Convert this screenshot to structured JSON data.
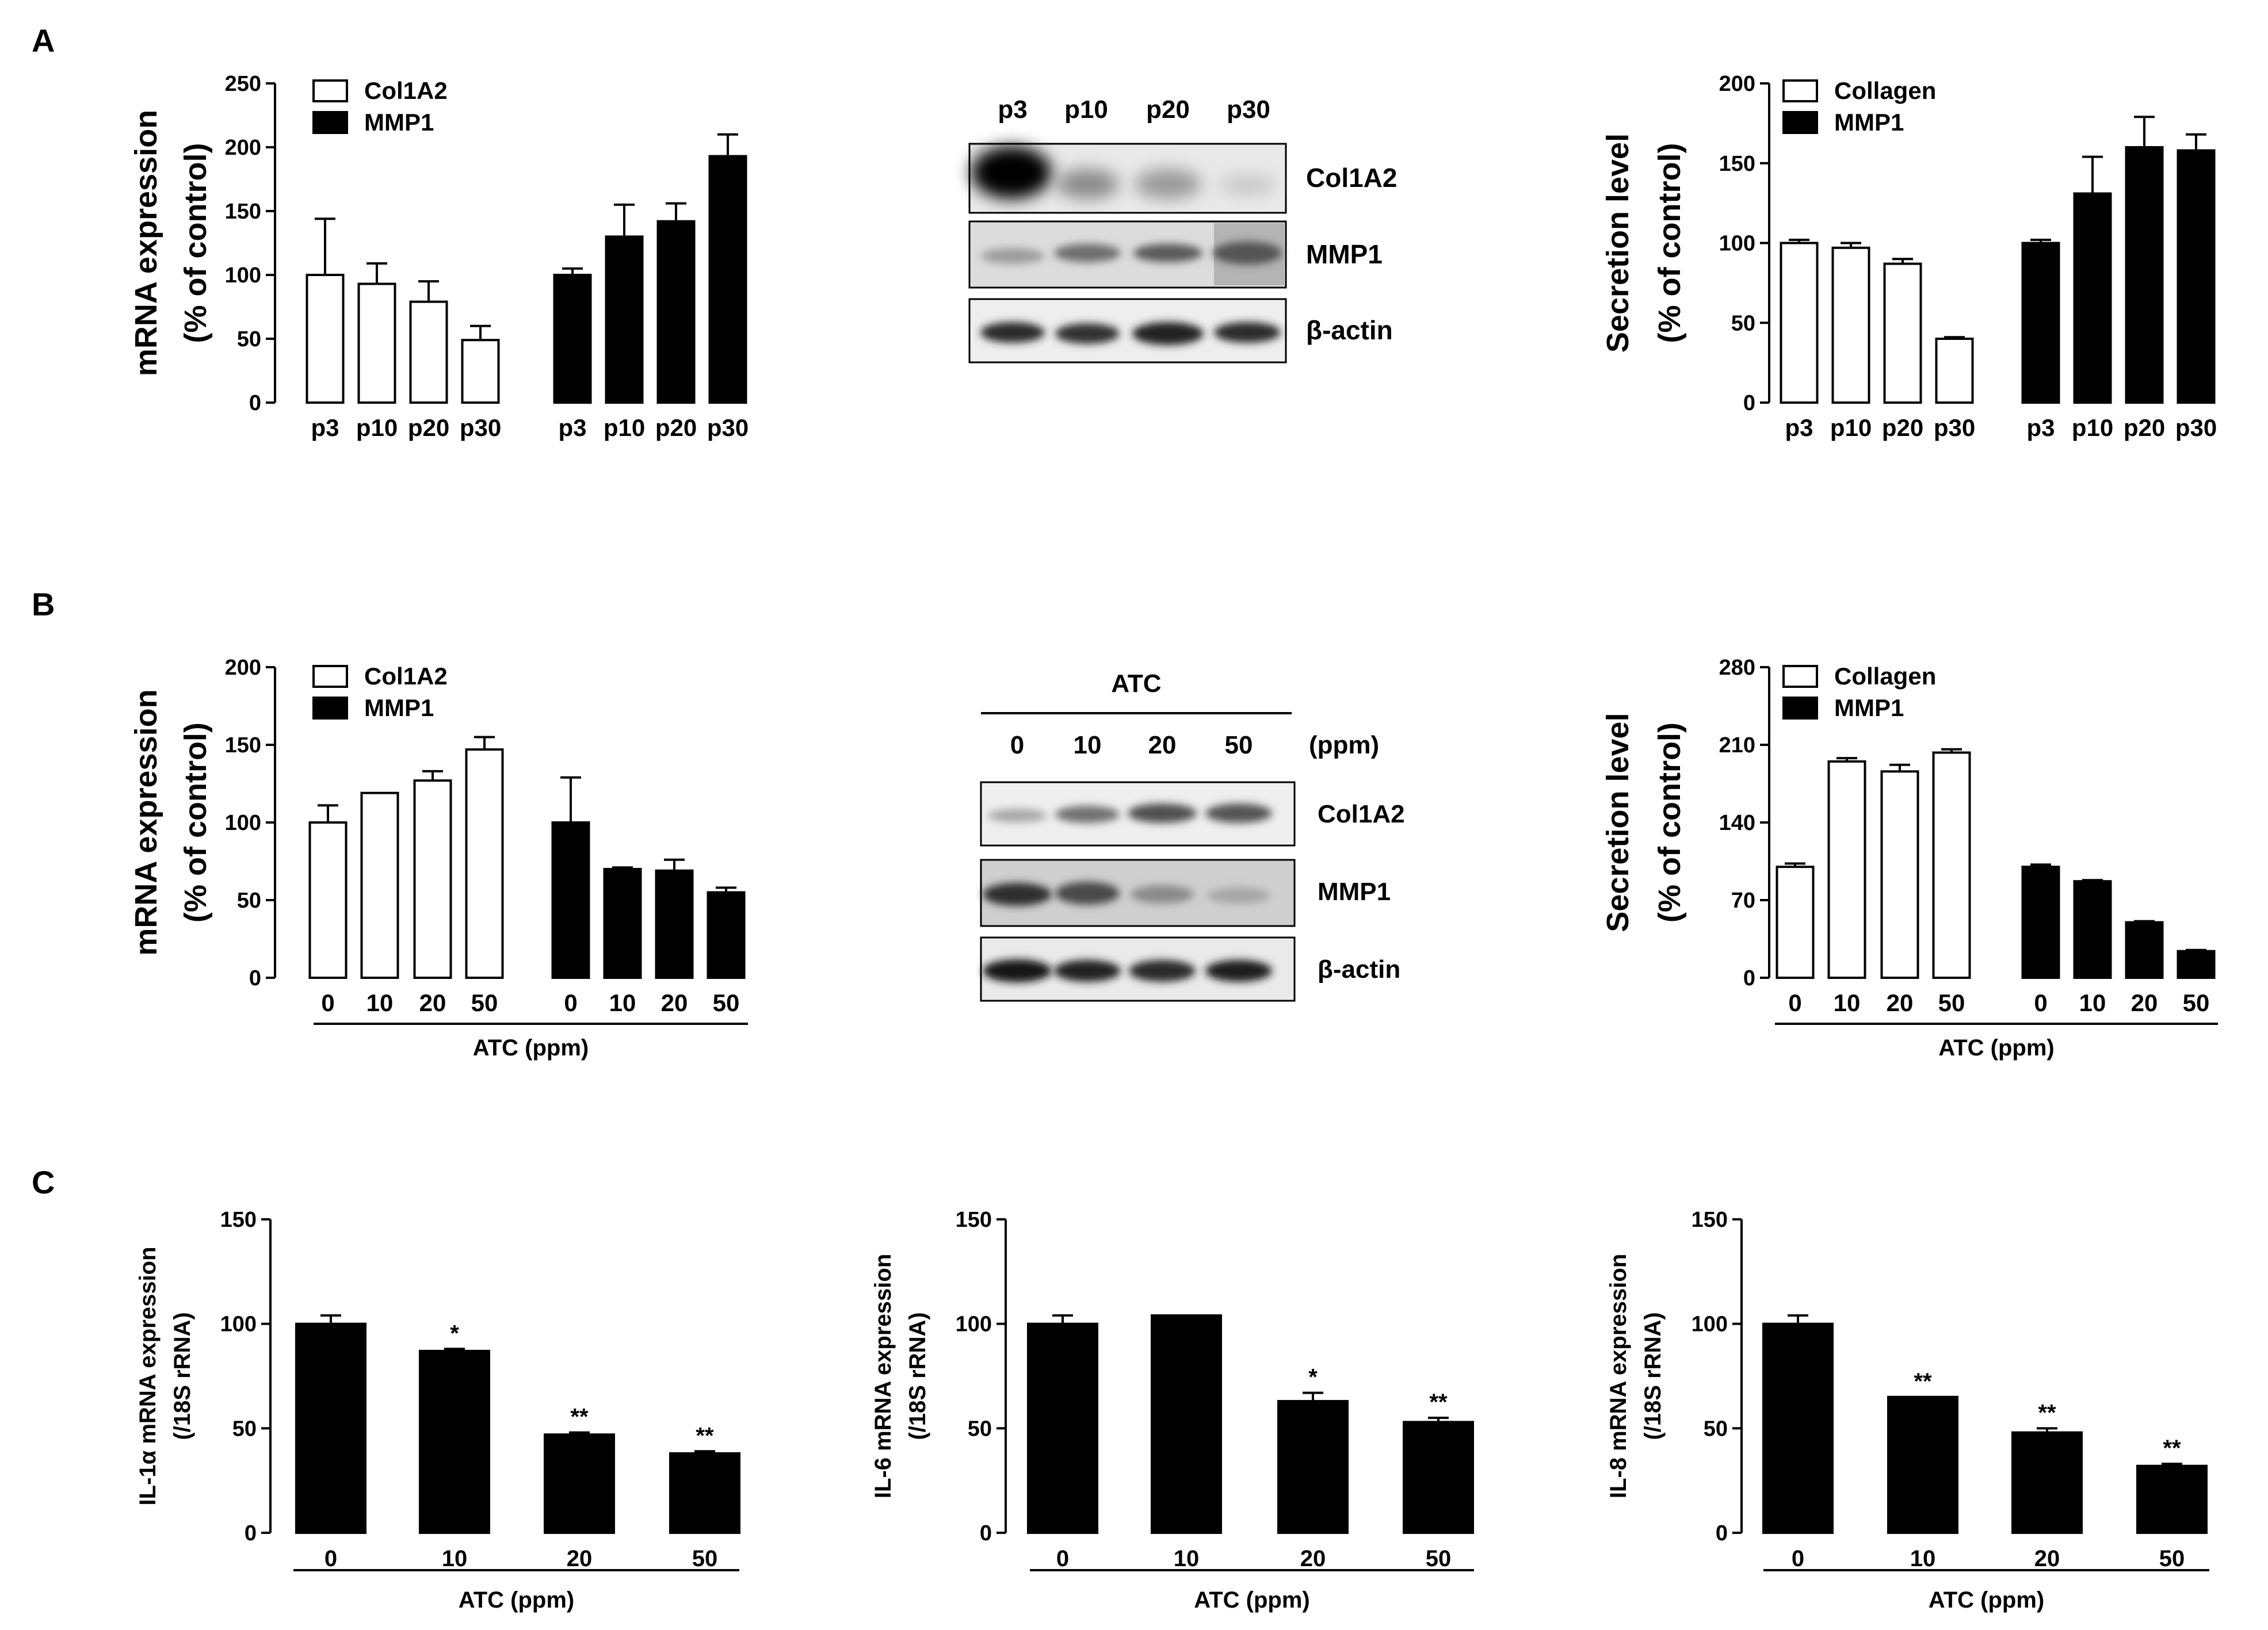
{
  "panels": {
    "a": "A",
    "b": "B",
    "c": "C"
  },
  "westerns": {
    "a": {
      "lanes": [
        "p3",
        "p10",
        "p20",
        "p30"
      ],
      "bands": [
        "Col1A2",
        "MMP1",
        "β-actin"
      ]
    },
    "b": {
      "treatment": "ATC",
      "lanes": [
        "0",
        "10",
        "20",
        "50"
      ],
      "unit": "(ppm)",
      "bands": [
        "Col1A2",
        "MMP1",
        "β-actin"
      ]
    }
  },
  "chart_data": [
    {
      "id": "a1",
      "type": "bar",
      "ylabel": "mRNA expression",
      "ylabel2": "(% of control)",
      "ylim": [
        0,
        250
      ],
      "yticks": [
        "0",
        "50",
        "100",
        "150",
        "200",
        "250"
      ],
      "categories": [
        "p3",
        "p10",
        "p20",
        "p30"
      ],
      "group_label": "",
      "series": [
        {
          "name": "Col1A2",
          "fill": "#ffffff",
          "values": [
            100,
            93,
            79,
            49
          ],
          "errors": [
            44,
            16,
            16,
            11
          ]
        },
        {
          "name": "MMP1",
          "fill": "#000000",
          "values": [
            100,
            130,
            142,
            193
          ],
          "errors": [
            5,
            25,
            14,
            17
          ]
        }
      ],
      "legend": "top-left"
    },
    {
      "id": "a2",
      "type": "bar",
      "ylabel": "Secretion level",
      "ylabel2": "(% of control)",
      "ylim": [
        0,
        200
      ],
      "yticks": [
        "0",
        "50",
        "100",
        "150",
        "200"
      ],
      "categories": [
        "p3",
        "p10",
        "p20",
        "p30"
      ],
      "group_label": "",
      "series": [
        {
          "name": "Collagen",
          "fill": "#ffffff",
          "values": [
            100,
            97,
            87,
            40
          ],
          "errors": [
            2,
            3,
            3,
            1
          ]
        },
        {
          "name": "MMP1",
          "fill": "#000000",
          "values": [
            100,
            131,
            160,
            158
          ],
          "errors": [
            2,
            23,
            19,
            10
          ]
        }
      ],
      "legend": "top-left"
    },
    {
      "id": "b1",
      "type": "bar",
      "ylabel": "mRNA expression",
      "ylabel2": "(% of control)",
      "ylim": [
        0,
        200
      ],
      "yticks": [
        "0",
        "50",
        "100",
        "150",
        "200"
      ],
      "categories": [
        "0",
        "10",
        "20",
        "50"
      ],
      "group_label": "ATC (ppm)",
      "series": [
        {
          "name": "Col1A2",
          "fill": "#ffffff",
          "values": [
            100,
            119,
            127,
            147
          ],
          "errors": [
            11,
            0,
            6,
            8
          ]
        },
        {
          "name": "MMP1",
          "fill": "#000000",
          "values": [
            100,
            70,
            69,
            55
          ],
          "errors": [
            29,
            1,
            7,
            3
          ]
        }
      ],
      "legend": "top-left"
    },
    {
      "id": "b2",
      "type": "bar",
      "ylabel": "Secretion level",
      "ylabel2": "(% of control)",
      "ylim": [
        0,
        280
      ],
      "yticks": [
        "0",
        "70",
        "140",
        "210",
        "280"
      ],
      "categories": [
        "0",
        "10",
        "20",
        "50"
      ],
      "group_label": "ATC (ppm)",
      "series": [
        {
          "name": "Collagen",
          "fill": "#ffffff",
          "values": [
            100,
            195,
            186,
            203
          ],
          "errors": [
            3,
            3,
            6,
            3
          ]
        },
        {
          "name": "MMP1",
          "fill": "#000000",
          "values": [
            100,
            87,
            50,
            24
          ],
          "errors": [
            2,
            1,
            1,
            1
          ]
        }
      ],
      "legend": "top-left"
    },
    {
      "id": "c1",
      "type": "bar",
      "ylabel": "IL-1α mRNA expression",
      "ylabel2": "(/18S rRNA)",
      "ylim": [
        0,
        150
      ],
      "yticks": [
        "0",
        "50",
        "100",
        "150"
      ],
      "categories": [
        "0",
        "10",
        "20",
        "50"
      ],
      "group_label": "ATC (ppm)",
      "series": [
        {
          "name": "IL-1α",
          "fill": "#000000",
          "values": [
            100,
            87,
            47,
            38
          ],
          "errors": [
            4,
            1,
            1,
            1
          ],
          "annotations": [
            "",
            "*",
            "**",
            "**"
          ]
        }
      ]
    },
    {
      "id": "c2",
      "type": "bar",
      "ylabel": "IL-6 mRNA expression",
      "ylabel2": "(/18S rRNA)",
      "ylim": [
        0,
        150
      ],
      "yticks": [
        "0",
        "50",
        "100",
        "150"
      ],
      "categories": [
        "0",
        "10",
        "20",
        "50"
      ],
      "group_label": "ATC (ppm)",
      "series": [
        {
          "name": "IL-6",
          "fill": "#000000",
          "values": [
            100,
            104,
            63,
            53
          ],
          "errors": [
            4,
            0,
            4,
            2
          ],
          "annotations": [
            "",
            "",
            "*",
            "**"
          ]
        }
      ]
    },
    {
      "id": "c3",
      "type": "bar",
      "ylabel": "IL-8 mRNA expression",
      "ylabel2": "(/18S rRNA)",
      "ylim": [
        0,
        150
      ],
      "yticks": [
        "0",
        "50",
        "100",
        "150"
      ],
      "categories": [
        "0",
        "10",
        "20",
        "50"
      ],
      "group_label": "ATC (ppm)",
      "series": [
        {
          "name": "IL-8",
          "fill": "#000000",
          "values": [
            100,
            65,
            48,
            32
          ],
          "errors": [
            4,
            0,
            2,
            1
          ],
          "annotations": [
            "",
            "**",
            "**",
            "**"
          ]
        }
      ]
    }
  ]
}
